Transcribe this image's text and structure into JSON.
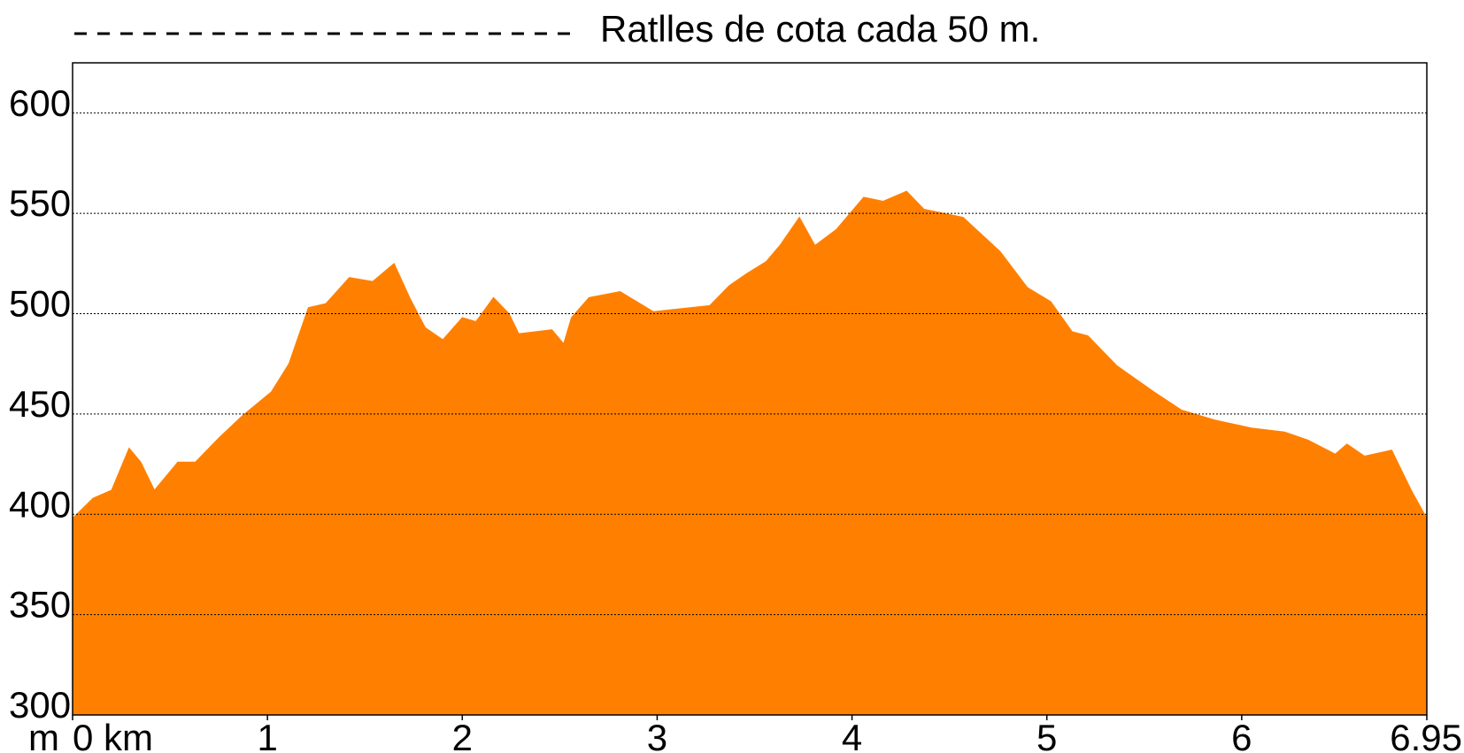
{
  "chart_data": {
    "type": "area",
    "legend_text": "Ratlles de cota cada 50 m.",
    "y_label": "m",
    "color": "#ff8000",
    "grid": true,
    "grid_color": "#000000",
    "x": [
      0,
      0.105,
      0.2,
      0.29,
      0.35,
      0.42,
      0.54,
      0.63,
      0.75,
      0.87,
      1.02,
      1.11,
      1.21,
      1.3,
      1.42,
      1.54,
      1.65,
      1.73,
      1.81,
      1.9,
      2.0,
      2.07,
      2.16,
      2.24,
      2.29,
      2.46,
      2.52,
      2.56,
      2.65,
      2.81,
      2.98,
      3.27,
      3.37,
      3.46,
      3.56,
      3.63,
      3.73,
      3.81,
      3.92,
      4.06,
      4.16,
      4.28,
      4.37,
      4.57,
      4.76,
      4.9,
      5.02,
      5.13,
      5.21,
      5.36,
      5.55,
      5.69,
      5.86,
      6.05,
      6.22,
      6.34,
      6.48,
      6.54,
      6.63,
      6.77,
      6.87,
      6.95
    ],
    "values": [
      398,
      408,
      412,
      433,
      426,
      412,
      426,
      426,
      438,
      449,
      461,
      475,
      503,
      505,
      518,
      516,
      525,
      508,
      493,
      487,
      498,
      496,
      508,
      500,
      490,
      492,
      485,
      498,
      508,
      511,
      501,
      504,
      514,
      520,
      526,
      534,
      548,
      534,
      542,
      558,
      556,
      561,
      552,
      548,
      531,
      513,
      506,
      491,
      489,
      474,
      461,
      452,
      447,
      443,
      441,
      437,
      430,
      435,
      429,
      432,
      412,
      398
    ],
    "xlim": [
      0,
      6.95
    ],
    "xticks": [
      {
        "value": 0,
        "label": "0 km"
      },
      1,
      2,
      3,
      4,
      5,
      6,
      6.95
    ],
    "ylim": [
      300,
      625
    ],
    "yticks": [
      300,
      350,
      400,
      450,
      500,
      550,
      600
    ]
  }
}
